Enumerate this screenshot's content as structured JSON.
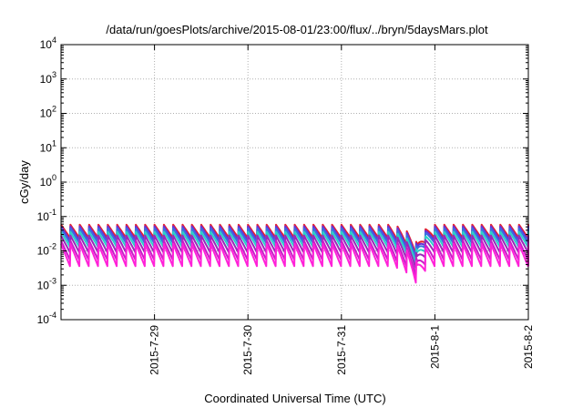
{
  "chart_data": {
    "type": "line",
    "title": "/data/run/goesPlots/archive/2015-08-01/23:00/flux/../bryn/5daysMars.plot",
    "xlabel": "Coordinated Universal Time (UTC)",
    "ylabel": "cGy/day",
    "yscale": "log",
    "ylim": [
      0.0001,
      10000
    ],
    "xlim": [
      "2015-07-28",
      "2015-08-02"
    ],
    "x_ticks": [
      "2015-7-29",
      "2015-7-30",
      "2015-7-31",
      "2015-8-1",
      "2015-8-2"
    ],
    "y_ticks": [
      {
        "base": "10",
        "exp": "-4"
      },
      {
        "base": "10",
        "exp": "-3"
      },
      {
        "base": "10",
        "exp": "-2"
      },
      {
        "base": "10",
        "exp": "-1"
      },
      {
        "base": "10",
        "exp": "0"
      },
      {
        "base": "10",
        "exp": "1"
      },
      {
        "base": "10",
        "exp": "2"
      },
      {
        "base": "10",
        "exp": "3"
      },
      {
        "base": "10",
        "exp": "4"
      }
    ],
    "grid": true,
    "sawtooth_period_days": 0.1,
    "dip": {
      "start": "2015-07-31 12:00",
      "end": "2015-08-01 00:00",
      "min_fraction": 0.28
    },
    "series": [
      {
        "color": "#e8202a",
        "peak": 0.058,
        "trough": 0.024
      },
      {
        "color": "#6a2fd8",
        "peak": 0.052,
        "trough": 0.02
      },
      {
        "color": "#3a6fe0",
        "peak": 0.045,
        "trough": 0.017
      },
      {
        "color": "#2ad2c8",
        "peak": 0.036,
        "trough": 0.013
      },
      {
        "color": "#9a28b8",
        "peak": 0.028,
        "trough": 0.009
      },
      {
        "color": "#c81ec8",
        "peak": 0.02,
        "trough": 0.0055
      },
      {
        "color": "#ff22d8",
        "peak": 0.016,
        "trough": 0.0036
      }
    ]
  }
}
